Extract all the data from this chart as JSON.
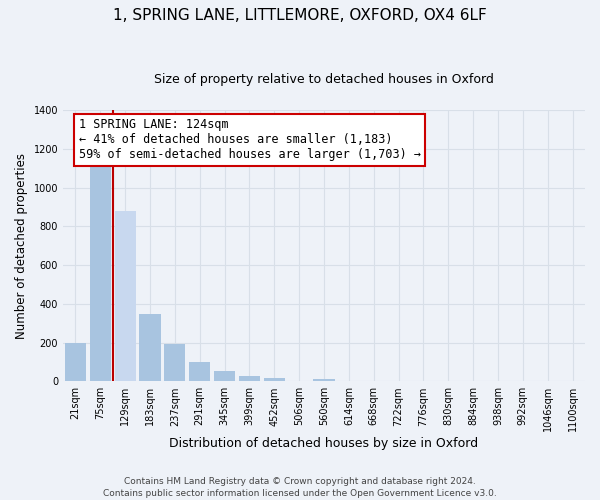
{
  "title": "1, SPRING LANE, LITTLEMORE, OXFORD, OX4 6LF",
  "subtitle": "Size of property relative to detached houses in Oxford",
  "xlabel": "Distribution of detached houses by size in Oxford",
  "ylabel": "Number of detached properties",
  "bar_labels": [
    "21sqm",
    "75sqm",
    "129sqm",
    "183sqm",
    "237sqm",
    "291sqm",
    "345sqm",
    "399sqm",
    "452sqm",
    "506sqm",
    "560sqm",
    "614sqm",
    "668sqm",
    "722sqm",
    "776sqm",
    "830sqm",
    "884sqm",
    "938sqm",
    "992sqm",
    "1046sqm",
    "1100sqm"
  ],
  "bar_heights": [
    200,
    1120,
    880,
    350,
    195,
    100,
    55,
    25,
    15,
    0,
    10,
    0,
    0,
    0,
    0,
    0,
    0,
    0,
    0,
    0,
    0
  ],
  "highlight_bar_index": 2,
  "highlight_color": "#c8d8ef",
  "normal_color": "#a8c4e0",
  "red_line_x": 1.5,
  "annotation_title": "1 SPRING LANE: 124sqm",
  "annotation_line1": "← 41% of detached houses are smaller (1,183)",
  "annotation_line2": "59% of semi-detached houses are larger (1,703) →",
  "annotation_box_color": "#ffffff",
  "annotation_border_color": "#cc0000",
  "ylim": [
    0,
    1400
  ],
  "yticks": [
    0,
    200,
    400,
    600,
    800,
    1000,
    1200,
    1400
  ],
  "footer_line1": "Contains HM Land Registry data © Crown copyright and database right 2024.",
  "footer_line2": "Contains public sector information licensed under the Open Government Licence v3.0.",
  "bg_color": "#eef2f8",
  "grid_color": "#d8dfe8",
  "red_line_color": "#bb0000",
  "title_fontsize": 11,
  "subtitle_fontsize": 9,
  "xlabel_fontsize": 9,
  "ylabel_fontsize": 8.5,
  "tick_fontsize": 7,
  "annot_fontsize": 8.5,
  "footer_fontsize": 6.5
}
